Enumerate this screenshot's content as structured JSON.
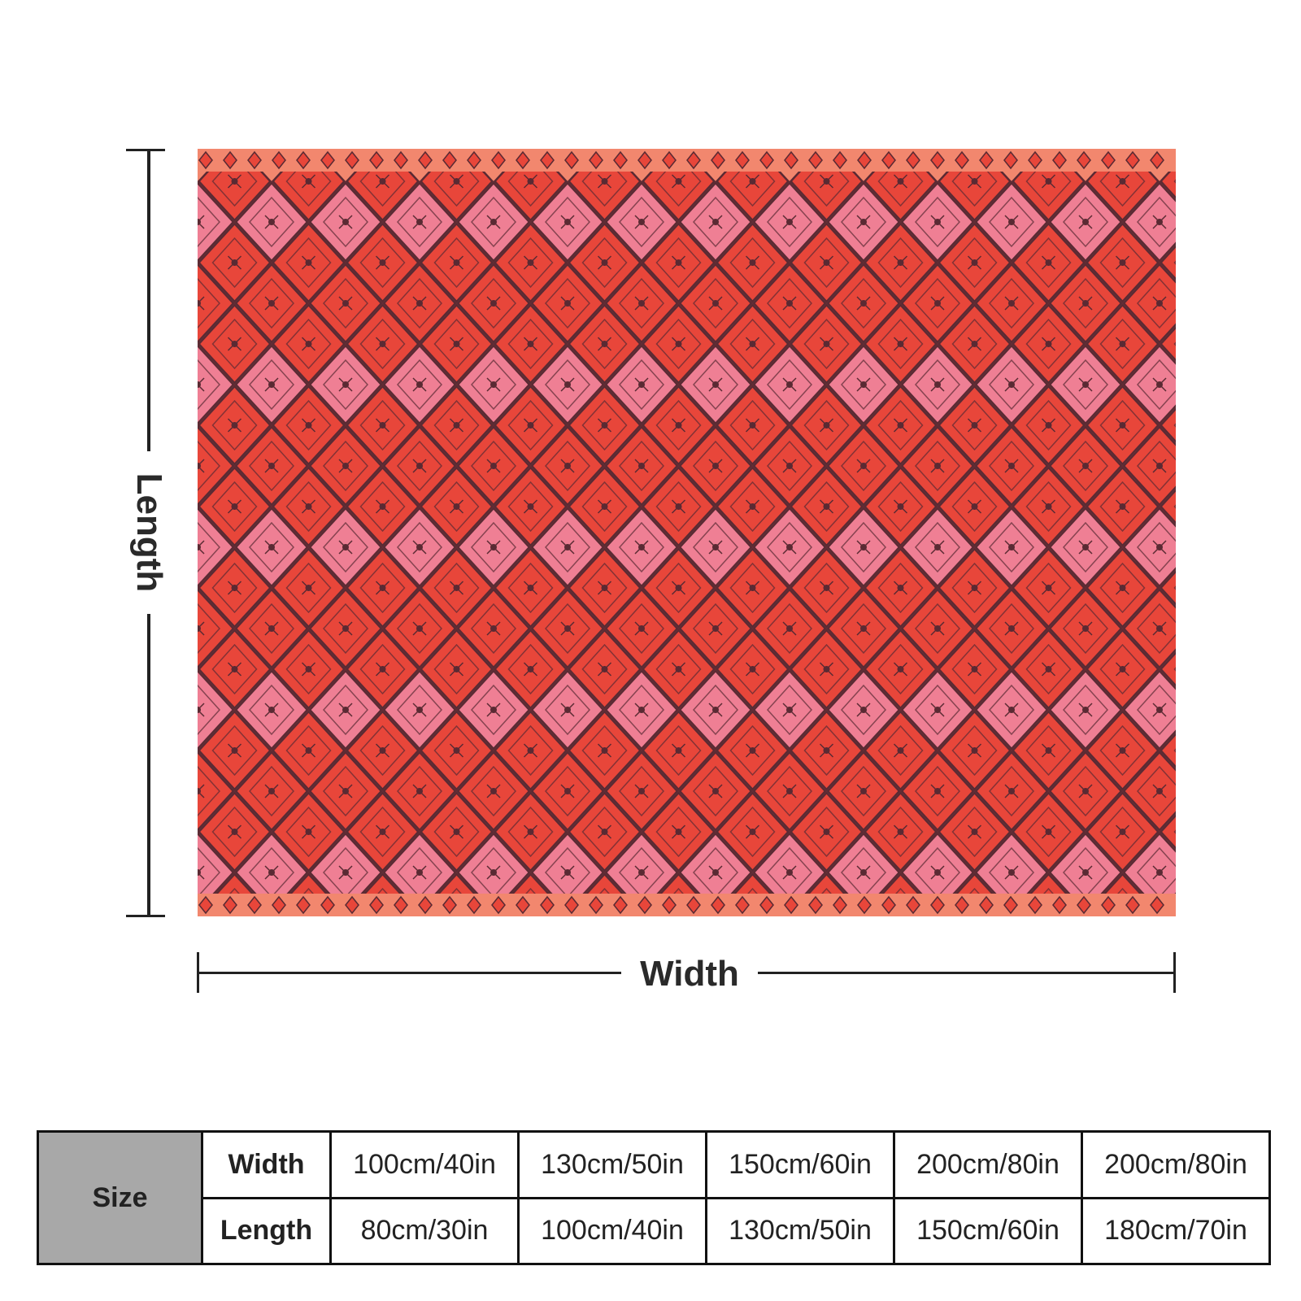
{
  "product_image": {
    "pattern": "repeating red, coral and pink diamond kilim pattern",
    "colors": {
      "background": "#f2876e",
      "stripe": "#ef7050",
      "diamond_red": "#e8463a",
      "diamond_pink": "#ef7f94",
      "outline": "#5a2a33",
      "motif_purple": "#b06aa0"
    }
  },
  "dimensions": {
    "length_label": "Length",
    "width_label": "Width"
  },
  "size_table": {
    "header": "Size",
    "rows": [
      {
        "label": "Width",
        "values": [
          "100cm/40in",
          "130cm/50in",
          "150cm/60in",
          "200cm/80in",
          "200cm/80in"
        ]
      },
      {
        "label": "Length",
        "values": [
          "80cm/30in",
          "100cm/40in",
          "130cm/50in",
          "150cm/60in",
          "180cm/70in"
        ]
      }
    ]
  }
}
